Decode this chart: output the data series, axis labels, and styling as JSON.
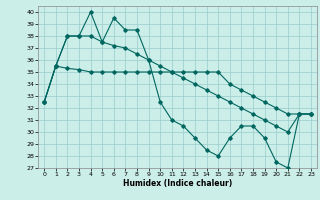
{
  "xlabel": "Humidex (Indice chaleur)",
  "bg_color": "#cceee8",
  "line_color": "#006660",
  "grid_color": "#99cccc",
  "xlim": [
    -0.5,
    23.5
  ],
  "ylim": [
    27,
    40.5
  ],
  "yticks": [
    27,
    28,
    29,
    30,
    31,
    32,
    33,
    34,
    35,
    36,
    37,
    38,
    39,
    40
  ],
  "xticks": [
    0,
    1,
    2,
    3,
    4,
    5,
    6,
    7,
    8,
    9,
    10,
    11,
    12,
    13,
    14,
    15,
    16,
    17,
    18,
    19,
    20,
    21,
    22,
    23
  ],
  "s1": [
    32.5,
    35.5,
    38.0,
    38.0,
    40.0,
    37.5,
    39.5,
    38.5,
    38.5,
    36.0,
    32.5,
    31.0,
    30.5,
    29.5,
    28.5,
    28.0,
    29.5,
    30.5,
    30.5,
    29.5,
    27.5,
    27.0,
    31.5,
    31.5
  ],
  "s2": [
    32.5,
    35.5,
    38.0,
    38.0,
    38.0,
    37.5,
    37.2,
    37.0,
    36.5,
    36.0,
    35.5,
    35.0,
    34.5,
    34.0,
    33.5,
    33.0,
    32.5,
    32.0,
    31.5,
    31.0,
    30.5,
    30.0,
    31.5,
    31.5
  ],
  "s3": [
    32.5,
    35.5,
    35.3,
    35.2,
    35.0,
    35.0,
    35.0,
    35.0,
    35.0,
    35.0,
    35.0,
    35.0,
    35.0,
    35.0,
    35.0,
    35.0,
    34.0,
    33.5,
    33.0,
    32.5,
    32.0,
    31.5,
    31.5,
    31.5
  ]
}
